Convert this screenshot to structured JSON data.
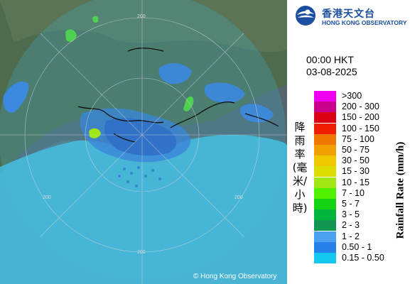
{
  "map": {
    "copyright": "© Hong Kong Observatory",
    "range_ring_labels": [
      "200",
      "200",
      "200",
      "200"
    ]
  },
  "logo": {
    "chinese": "香港天文台",
    "english": "HONG KONG OBSERVATORY"
  },
  "header": {
    "time": "00:00 HKT",
    "date": "03-08-2025"
  },
  "legend": {
    "title_cn": "降雨率(毫米/小時)",
    "title_en": "Rainfall Rate (mm/h)",
    "items": [
      {
        "label": ">300",
        "color": "#f000f0"
      },
      {
        "label": "200 - 300",
        "color": "#c8008c"
      },
      {
        "label": "150 - 200",
        "color": "#dc0014"
      },
      {
        "label": "100 - 150",
        "color": "#f01e00"
      },
      {
        "label": "75 - 100",
        "color": "#f07800"
      },
      {
        "label": "50 - 75",
        "color": "#f0a000"
      },
      {
        "label": "30 - 50",
        "color": "#f0c800"
      },
      {
        "label": "15 - 30",
        "color": "#dcdc00"
      },
      {
        "label": "10 - 15",
        "color": "#a0e614"
      },
      {
        "label": "7 - 10",
        "color": "#50f000"
      },
      {
        "label": "5 - 7",
        "color": "#14d214"
      },
      {
        "label": "3 - 5",
        "color": "#00b43c"
      },
      {
        "label": "2 - 3",
        "color": "#109650"
      },
      {
        "label": "1 - 2",
        "color": "#4ba0f0"
      },
      {
        "label": "0.50 - 1",
        "color": "#2680ea"
      },
      {
        "label": "0.15 - 0.50",
        "color": "#14c8f0"
      }
    ]
  }
}
